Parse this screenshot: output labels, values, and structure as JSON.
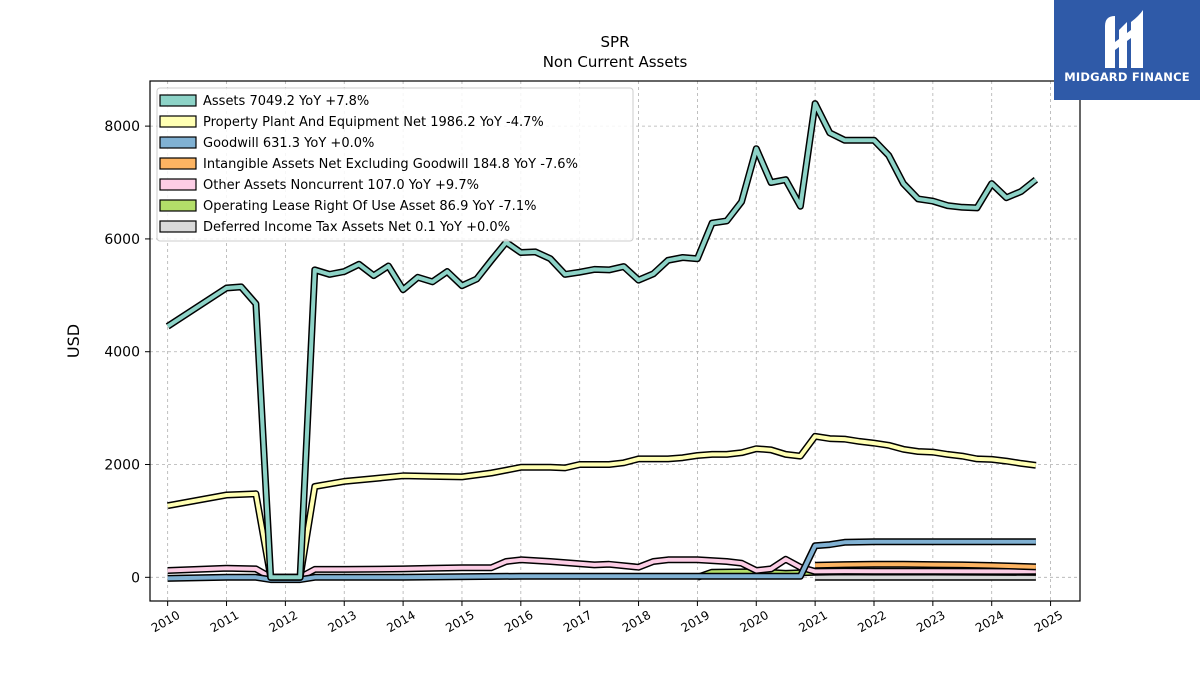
{
  "brand": {
    "name": "MIDGARD FINANCE",
    "logo_icon": "midgard-m-icon",
    "bg_color": "#2f5aa8"
  },
  "chart_data": {
    "type": "line",
    "title": "SPR",
    "subtitle": "Non Current  Assets",
    "xlabel": "",
    "ylabel": "USD",
    "xlim": [
      2009.7,
      2025.5
    ],
    "ylim": [
      -420,
      8800
    ],
    "x_ticks": [
      "2010",
      "2011",
      "2012",
      "2013",
      "2014",
      "2015",
      "2016",
      "2017",
      "2018",
      "2019",
      "2020",
      "2021",
      "2022",
      "2023",
      "2024",
      "2025"
    ],
    "y_ticks": [
      0,
      2000,
      4000,
      6000,
      8000
    ],
    "grid": true,
    "legend_position": "top-left",
    "series": [
      {
        "name": "Assets  7049.2 YoY +7.8%",
        "color": "#8dd3c7",
        "x": [
          2010.0,
          2011.0,
          2011.25,
          2011.5,
          2011.75,
          2012.25,
          2012.5,
          2012.75,
          2013.0,
          2013.25,
          2013.5,
          2013.75,
          2014.0,
          2014.25,
          2014.5,
          2014.75,
          2015.0,
          2015.25,
          2015.5,
          2015.75,
          2016.0,
          2016.25,
          2016.5,
          2016.75,
          2017.0,
          2017.25,
          2017.5,
          2017.75,
          2018.0,
          2018.25,
          2018.5,
          2018.75,
          2019.0,
          2019.25,
          2019.5,
          2019.75,
          2020.0,
          2020.25,
          2020.5,
          2020.75,
          2021.0,
          2021.25,
          2021.5,
          2021.75,
          2022.0,
          2022.25,
          2022.5,
          2022.75,
          2023.0,
          2023.25,
          2023.5,
          2023.75,
          2024.0,
          2024.25,
          2024.5,
          2024.75
        ],
        "y": [
          4450,
          5130,
          5150,
          4850,
          0,
          0,
          5450,
          5370,
          5420,
          5550,
          5350,
          5520,
          5100,
          5320,
          5240,
          5420,
          5170,
          5290,
          5620,
          5940,
          5760,
          5770,
          5650,
          5370,
          5410,
          5460,
          5450,
          5510,
          5270,
          5380,
          5620,
          5670,
          5650,
          6280,
          6320,
          6660,
          7600,
          7000,
          7050,
          6580,
          8400,
          7880,
          7750,
          7750,
          7750,
          7480,
          6980,
          6710,
          6670,
          6590,
          6560,
          6550,
          6980,
          6730,
          6840,
          7049.2
        ]
      },
      {
        "name": "Property Plant And Equipment Net  1986.2 YoY -4.7%",
        "color": "#ffffb3",
        "x": [
          2010.0,
          2011.0,
          2011.5,
          2011.75,
          2012.25,
          2012.5,
          2013.0,
          2013.5,
          2014.0,
          2014.5,
          2015.0,
          2015.5,
          2015.75,
          2016.0,
          2016.5,
          2016.75,
          2017.0,
          2017.5,
          2017.75,
          2018.0,
          2018.5,
          2018.75,
          2019.0,
          2019.25,
          2019.5,
          2019.75,
          2020.0,
          2020.25,
          2020.5,
          2020.75,
          2021.0,
          2021.25,
          2021.5,
          2021.75,
          2022.0,
          2022.25,
          2022.5,
          2022.75,
          2023.0,
          2023.25,
          2023.5,
          2023.75,
          2024.0,
          2024.25,
          2024.5,
          2024.75
        ],
        "y": [
          1270,
          1460,
          1480,
          0,
          0,
          1610,
          1700,
          1750,
          1800,
          1790,
          1780,
          1850,
          1900,
          1950,
          1950,
          1940,
          2000,
          2000,
          2030,
          2100,
          2100,
          2120,
          2160,
          2180,
          2180,
          2210,
          2280,
          2260,
          2180,
          2150,
          2500,
          2460,
          2450,
          2410,
          2380,
          2340,
          2270,
          2230,
          2220,
          2180,
          2150,
          2100,
          2090,
          2060,
          2020,
          1986.2
        ]
      },
      {
        "name": "Goodwill  631.3 YoY +0.0%",
        "color": "#80b1d3",
        "x": [
          2010.0,
          2011.0,
          2011.5,
          2011.75,
          2012.25,
          2012.5,
          2014.0,
          2016.0,
          2019.0,
          2020.0,
          2020.5,
          2020.75,
          2021.0,
          2021.25,
          2021.5,
          2022.0,
          2023.0,
          2024.0,
          2024.75
        ],
        "y": [
          -20,
          0,
          0,
          -40,
          -40,
          0,
          0,
          20,
          20,
          20,
          20,
          20,
          560,
          580,
          620,
          631.3,
          631.3,
          631.3,
          631.3
        ]
      },
      {
        "name": "Intangible Assets Net Excluding Goodwill  184.8 YoY -7.6%",
        "color": "#fdb462",
        "x": [
          2021.0,
          2021.5,
          2022.0,
          2022.5,
          2023.0,
          2023.5,
          2024.0,
          2024.75
        ],
        "y": [
          215,
          225,
          230,
          230,
          225,
          220,
          210,
          184.8
        ]
      },
      {
        "name": "Other Assets Noncurrent  107.0 YoY +9.7%",
        "color": "#fccde5",
        "x": [
          2010.0,
          2011.0,
          2011.5,
          2011.75,
          2012.25,
          2012.5,
          2013.0,
          2014.0,
          2014.5,
          2015.0,
          2015.5,
          2015.75,
          2016.0,
          2016.5,
          2017.0,
          2017.25,
          2017.5,
          2018.0,
          2018.25,
          2018.5,
          2019.0,
          2019.5,
          2019.75,
          2020.0,
          2020.25,
          2020.5,
          2020.75,
          2021.0,
          2021.5,
          2022.0,
          2023.0,
          2024.0,
          2024.75
        ],
        "y": [
          120,
          160,
          150,
          0,
          0,
          140,
          140,
          150,
          160,
          170,
          170,
          280,
          310,
          280,
          240,
          220,
          230,
          180,
          280,
          310,
          310,
          280,
          250,
          120,
          150,
          320,
          180,
          105,
          110,
          108,
          106,
          105,
          107.0
        ]
      },
      {
        "name": "Operating Lease Right Of Use Asset  86.9 YoY -7.1%",
        "color": "#b3de69",
        "x": [
          2019.0,
          2019.25,
          2020.0,
          2020.5,
          2021.0,
          2021.5,
          2022.0,
          2023.0,
          2024.0,
          2024.75
        ],
        "y": [
          0,
          90,
          100,
          70,
          90,
          100,
          95,
          95,
          90,
          86.9
        ]
      },
      {
        "name": "Deferred Income Tax Assets Net  0.1 YoY +0.0%",
        "color": "#d9d9d9",
        "x": [
          2021.0,
          2022.0,
          2023.0,
          2024.0,
          2024.75
        ],
        "y": [
          0.1,
          0.1,
          0.1,
          0.1,
          0.1
        ]
      }
    ]
  }
}
